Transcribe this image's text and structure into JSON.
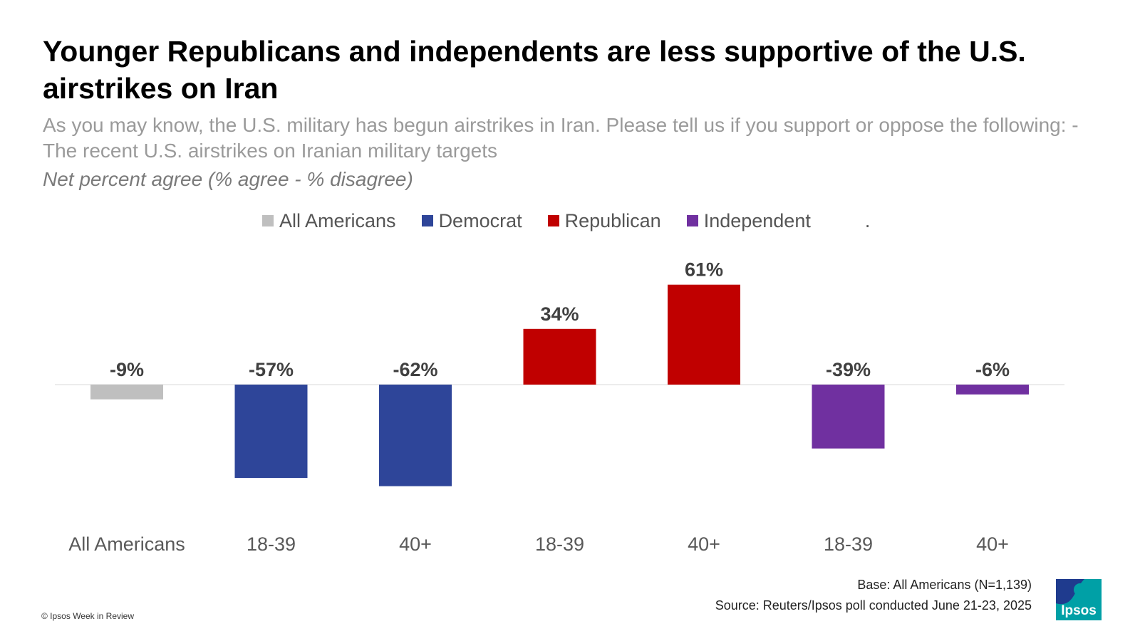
{
  "title": "Younger Republicans and independents are less supportive of the U.S. airstrikes on Iran",
  "subtitle": "As you may know, the U.S. military has begun airstrikes in Iran. Please tell us if you support or oppose the following: - The recent U.S. airstrikes on Iranian military targets",
  "measure": "Net percent agree (% agree - % disagree)",
  "legend": [
    {
      "label": "All Americans",
      "color": "#bfbfbf"
    },
    {
      "label": "Democrat",
      "color": "#2e4599"
    },
    {
      "label": "Republican",
      "color": "#c00000"
    },
    {
      "label": "Independent",
      "color": "#7030a0"
    }
  ],
  "legend_trailing": ".",
  "chart_data": {
    "type": "bar",
    "categories": [
      "All Americans",
      "18-39",
      "40+",
      "18-39",
      "40+",
      "18-39",
      "40+"
    ],
    "groups": [
      "All Americans",
      "Democrat",
      "Democrat",
      "Republican",
      "Republican",
      "Independent",
      "Independent"
    ],
    "values": [
      -9,
      -57,
      -62,
      34,
      61,
      -39,
      -6
    ],
    "labels": [
      "-9%",
      "-57%",
      "-62%",
      "34%",
      "61%",
      "-39%",
      "-6%"
    ],
    "colors": [
      "#bfbfbf",
      "#2e4599",
      "#2e4599",
      "#c00000",
      "#c00000",
      "#7030a0",
      "#7030a0"
    ],
    "ylim": [
      -75,
      75
    ],
    "grid": false,
    "legend_position": "top"
  },
  "notes": {
    "base": "Base: All Americans (N=1,139)",
    "source": "Source: Reuters/Ipsos poll conducted June 21-23, 2025"
  },
  "copyright": "© Ipsos Week in Review",
  "logo": {
    "text": "Ipsos",
    "color": "#00a0a6",
    "accent": "#1f3b8e"
  }
}
